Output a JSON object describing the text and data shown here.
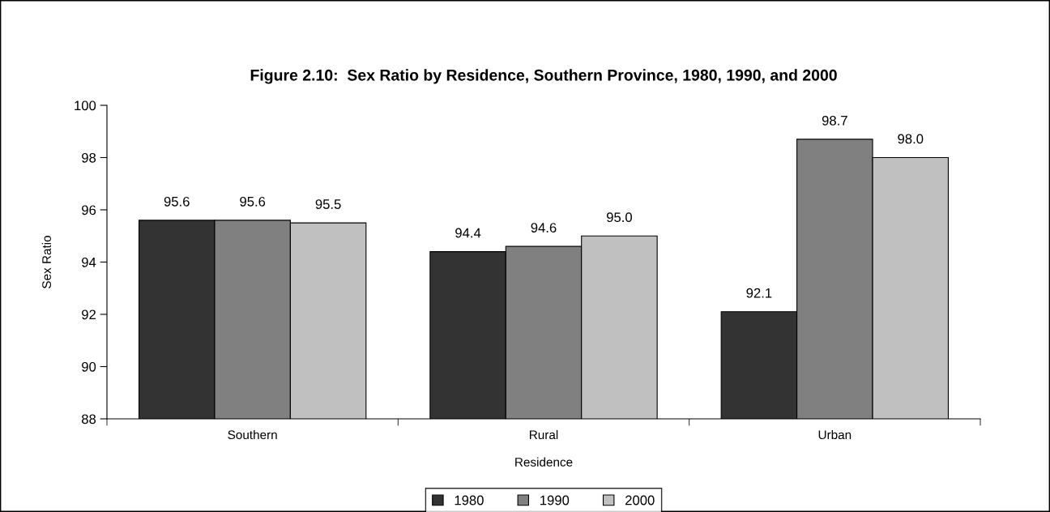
{
  "chart_data": {
    "type": "bar",
    "title": "Figure 2.10:  Sex Ratio by Residence, Southern Province, 1980, 1990, and 2000",
    "xlabel": "Residence",
    "ylabel": "Sex Ratio",
    "categories": [
      "Southern",
      "Rural",
      "Urban"
    ],
    "series": [
      {
        "name": "1980",
        "color": "#333333",
        "values": [
          95.6,
          94.4,
          92.1
        ],
        "value_labels": [
          "95.6",
          "94.4",
          "92.1"
        ]
      },
      {
        "name": "1990",
        "color": "#808080",
        "values": [
          95.6,
          94.6,
          98.7
        ],
        "value_labels": [
          "95.6",
          "94.6",
          "98.7"
        ]
      },
      {
        "name": "2000",
        "color": "#c0c0c0",
        "values": [
          95.5,
          95.0,
          98.0
        ],
        "value_labels": [
          "95.5",
          "95.0",
          "98.0"
        ]
      }
    ],
    "ylim": [
      88,
      100
    ],
    "yticks": [
      88,
      90,
      92,
      94,
      96,
      98,
      100
    ],
    "grid": false,
    "legend": "bottom"
  }
}
